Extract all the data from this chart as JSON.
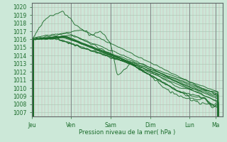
{
  "xlabel": "Pression niveau de la mer( hPa )",
  "bg_color": "#cce8d8",
  "line_color": "#1a6b2a",
  "minor_vgrid_color": "#c8a0a8",
  "major_grid_color": "#a0b8a8",
  "ylim": [
    1006.5,
    1020.5
  ],
  "yticks": [
    1007,
    1008,
    1009,
    1010,
    1011,
    1012,
    1013,
    1014,
    1015,
    1016,
    1017,
    1018,
    1019,
    1020
  ],
  "xtick_labels": [
    "Jeu",
    "Ven",
    "Sam",
    "Dim",
    "Lun",
    "Ma"
  ],
  "xtick_positions": [
    0,
    24,
    48,
    72,
    96,
    112
  ],
  "xlim": [
    0,
    116
  ]
}
